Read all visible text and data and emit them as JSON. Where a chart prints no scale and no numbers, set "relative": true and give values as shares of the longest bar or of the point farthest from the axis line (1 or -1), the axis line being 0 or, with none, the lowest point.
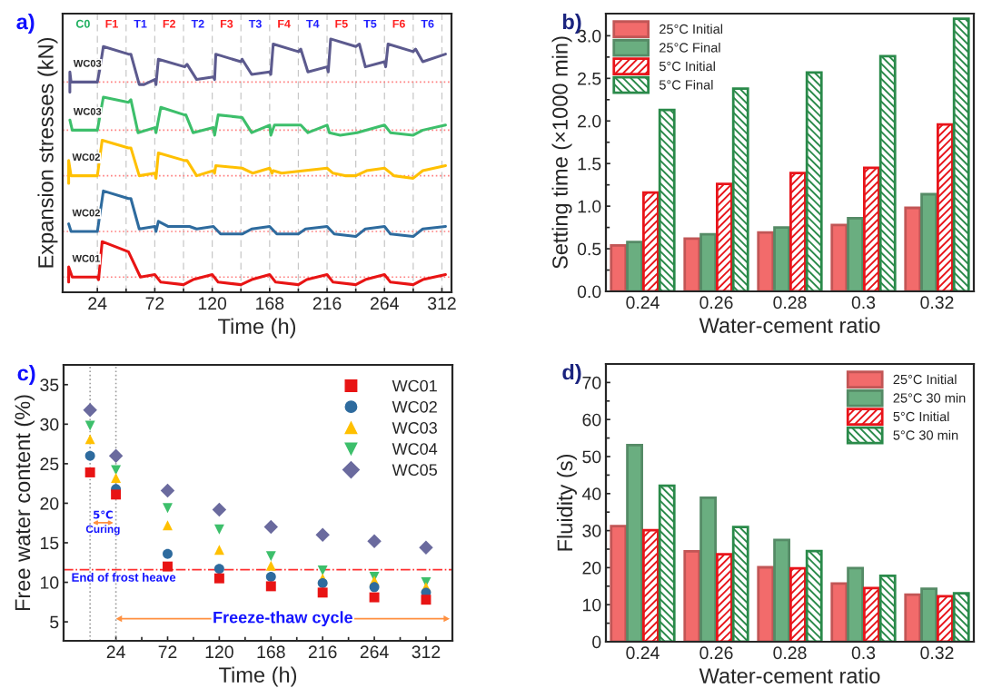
{
  "chart_data": [
    {
      "type": "line",
      "title": "a)",
      "xlabel": "Time (h)",
      "ylabel": "Expansion stresses (kN)",
      "relative": true,
      "xlim": [
        -5,
        320
      ],
      "xticks": [
        24,
        {
          "value": 48,
          "label": null
        },
        72,
        {
          "value": 96,
          "label": null
        },
        120,
        {
          "value": 144,
          "label": null
        },
        168,
        {
          "value": 192,
          "label": null
        },
        216,
        {
          "value": 240,
          "label": null
        },
        264,
        {
          "value": 288,
          "label": null
        },
        312
      ],
      "grid": "x",
      "tick_labels": "x",
      "line_style": "solid",
      "marker": "none",
      "series": [
        {
          "name": "WC03",
          "color": "#5c5a8e",
          "x": [
            1,
            1,
            2,
            24,
            26,
            29,
            50,
            52,
            59,
            63,
            72,
            73,
            75,
            97,
            99,
            107,
            121,
            122,
            123,
            144,
            145,
            153,
            168,
            169,
            171,
            192,
            194,
            200,
            216,
            217,
            219,
            240,
            243,
            248,
            264,
            265,
            267,
            288,
            290,
            296,
            315
          ],
          "values": [
            0.79,
            0.87,
            0.83,
            0.83,
            0.88,
            0.97,
            0.94,
            0.94,
            0.82,
            0.82,
            0.84,
            0.82,
            0.92,
            0.89,
            0.9,
            0.84,
            0.85,
            0.84,
            0.94,
            0.91,
            0.92,
            0.86,
            0.87,
            0.86,
            0.98,
            0.95,
            0.96,
            0.87,
            0.89,
            0.87,
            1.0,
            0.97,
            0.98,
            0.89,
            0.91,
            0.89,
            0.98,
            0.95,
            0.96,
            0.91,
            0.94
          ]
        },
        {
          "name": "WC03",
          "color": "#3dbf6b",
          "x": [
            1,
            3,
            24,
            29,
            50,
            52,
            58,
            72,
            73,
            77,
            97,
            98,
            104,
            121,
            122,
            125,
            145,
            153,
            168,
            169,
            172,
            192,
            194,
            200,
            216,
            218,
            227,
            241,
            264,
            269,
            288,
            296,
            315
          ],
          "values": [
            0.68,
            0.64,
            0.64,
            0.77,
            0.75,
            0.76,
            0.63,
            0.65,
            0.63,
            0.73,
            0.7,
            0.7,
            0.63,
            0.65,
            0.62,
            0.7,
            0.69,
            0.63,
            0.66,
            0.62,
            0.66,
            0.66,
            0.66,
            0.63,
            0.66,
            0.63,
            0.62,
            0.63,
            0.66,
            0.63,
            0.62,
            0.64,
            0.66
          ]
        },
        {
          "name": "WC02",
          "color": "#ffc000",
          "x": [
            0,
            0,
            2,
            24,
            28,
            50,
            52,
            59,
            72,
            73,
            75,
            97,
            99,
            107,
            121,
            122,
            123,
            145,
            154,
            168,
            170,
            171,
            178,
            216,
            221,
            231,
            240,
            249,
            264,
            272,
            288,
            296,
            315
          ],
          "values": [
            0.43,
            0.52,
            0.46,
            0.46,
            0.6,
            0.57,
            0.57,
            0.46,
            0.47,
            0.45,
            0.55,
            0.52,
            0.52,
            0.46,
            0.48,
            0.47,
            0.5,
            0.49,
            0.47,
            0.49,
            0.47,
            0.48,
            0.47,
            0.49,
            0.47,
            0.46,
            0.46,
            0.48,
            0.49,
            0.46,
            0.45,
            0.48,
            0.5
          ]
        },
        {
          "name": "WC02",
          "color": "#2e6b9e",
          "x": [
            0,
            2,
            24,
            29,
            50,
            52,
            59,
            72,
            73,
            75,
            83,
            97,
            101,
            107,
            121,
            127,
            145,
            153,
            168,
            174,
            192,
            198,
            216,
            222,
            240,
            248,
            264,
            269,
            288,
            296,
            315
          ],
          "values": [
            0.27,
            0.24,
            0.24,
            0.4,
            0.37,
            0.37,
            0.25,
            0.26,
            0.24,
            0.28,
            0.26,
            0.26,
            0.26,
            0.25,
            0.26,
            0.23,
            0.23,
            0.25,
            0.26,
            0.23,
            0.23,
            0.25,
            0.26,
            0.23,
            0.22,
            0.25,
            0.26,
            0.23,
            0.22,
            0.25,
            0.26
          ]
        },
        {
          "name": "WC01",
          "color": "#e81414",
          "x": [
            0,
            0,
            3,
            24,
            25,
            28,
            50,
            60,
            72,
            77,
            96,
            104,
            120,
            125,
            144,
            153,
            168,
            173,
            192,
            199,
            216,
            221,
            240,
            248,
            264,
            269,
            288,
            296,
            315
          ],
          "values": [
            0.04,
            0.1,
            0.06,
            0.06,
            0.05,
            0.2,
            0.16,
            0.06,
            0.07,
            0.04,
            0.03,
            0.05,
            0.07,
            0.04,
            0.03,
            0.05,
            0.07,
            0.04,
            0.03,
            0.05,
            0.07,
            0.04,
            0.03,
            0.05,
            0.07,
            0.04,
            0.03,
            0.05,
            0.07
          ]
        }
      ],
      "ref_lines": [
        {
          "axis": "y",
          "value": 0.83,
          "color": "#ff8080",
          "line_style": "dotted"
        },
        {
          "axis": "y",
          "value": 0.64,
          "color": "#ff8080",
          "line_style": "dotted"
        },
        {
          "axis": "y",
          "value": 0.46,
          "color": "#ff8080",
          "line_style": "dotted"
        },
        {
          "axis": "y",
          "value": 0.24,
          "color": "#ff8080",
          "line_style": "dotted"
        },
        {
          "axis": "y",
          "value": 0.06,
          "color": "#ff8080",
          "line_style": "dotted"
        }
      ],
      "annotations": [
        "C0",
        "F1",
        "T1",
        "F2",
        "T2",
        "F3",
        "T3",
        "F4",
        "T4",
        "F5",
        "T5",
        "F6",
        "T6"
      ]
    },
    {
      "type": "bar",
      "title": "b)",
      "xlabel": "Water-cement ratio",
      "ylabel": "Setting time (×1000 min)",
      "categories": [
        "0.24",
        "0.26",
        "0.28",
        "0.3",
        "0.32"
      ],
      "ylim": [
        0,
        3.26
      ],
      "yticks": [
        {
          "value": 0,
          "label": "0.0"
        },
        {
          "value": 0.25,
          "label": null
        },
        0.5,
        {
          "value": 0.75,
          "label": null
        },
        {
          "value": 1,
          "label": "1.0"
        },
        {
          "value": 1.25,
          "label": null
        },
        1.5,
        {
          "value": 1.75,
          "label": null
        },
        {
          "value": 2,
          "label": "2.0"
        },
        {
          "value": 2.25,
          "label": null
        },
        2.5,
        {
          "value": 2.75,
          "label": null
        },
        {
          "value": 3,
          "label": "3.0"
        }
      ],
      "legend": "top left",
      "series": [
        {
          "name": "25°C Initial",
          "color": "#f26b6b",
          "values": [
            0.54,
            0.62,
            0.69,
            0.78,
            0.98
          ]
        },
        {
          "name": "25°C Final",
          "color": "#6aae80",
          "values": [
            0.58,
            0.67,
            0.75,
            0.86,
            1.14
          ]
        },
        {
          "name": "5°C Initial",
          "color": "#e8141a",
          "values": [
            1.16,
            1.26,
            1.39,
            1.45,
            1.96
          ]
        },
        {
          "name": "5°C Final",
          "color": "#2a8a4a",
          "values": [
            2.13,
            2.38,
            2.57,
            2.76,
            3.2
          ]
        }
      ]
    },
    {
      "type": "scatter",
      "title": "c)",
      "xlabel": "Time (h)",
      "ylabel": "Free water content (%)",
      "x": [
        0,
        24,
        72,
        120,
        168,
        216,
        264,
        312
      ],
      "xlim": [
        -24.6,
        336.5
      ],
      "ylim": [
        2.6,
        37.5
      ],
      "xticks": [
        24,
        {
          "value": 48,
          "label": null
        },
        72,
        {
          "value": 96,
          "label": null
        },
        120,
        {
          "value": 144,
          "label": null
        },
        168,
        {
          "value": 192,
          "label": null
        },
        216,
        {
          "value": 240,
          "label": null
        },
        264,
        {
          "value": 288,
          "label": null
        },
        312
      ],
      "yticks": [
        5,
        10,
        15,
        20,
        25,
        30,
        35
      ],
      "legend": "top right",
      "series": [
        {
          "name": "WC01",
          "color": "#e81414",
          "marker": "square",
          "values": [
            23.9,
            21.1,
            12.0,
            10.5,
            9.5,
            8.7,
            8.1,
            7.8
          ]
        },
        {
          "name": "WC02",
          "color": "#2e6b9e",
          "marker": "circle",
          "values": [
            26.0,
            21.8,
            13.6,
            11.7,
            10.7,
            9.9,
            9.4,
            8.7
          ]
        },
        {
          "name": "WC03",
          "color": "#ffc000",
          "marker": "triangle",
          "values": [
            28.1,
            23.2,
            17.2,
            14.1,
            12.1,
            10.5,
            10.2,
            9.4
          ]
        },
        {
          "name": "WC04",
          "color": "#3dbf6b",
          "marker": "triangle_down",
          "values": [
            29.8,
            24.2,
            19.4,
            16.7,
            13.3,
            11.5,
            10.7,
            10.0
          ]
        },
        {
          "name": "WC05",
          "color": "#6a6a9e",
          "marker": "diamond",
          "values": [
            31.8,
            26.0,
            21.6,
            19.2,
            17.0,
            16.0,
            15.2,
            14.4
          ]
        }
      ],
      "ref_lines": [
        {
          "axis": "x",
          "value": 0,
          "color": "#a0a0a0",
          "line_style": "dotted"
        },
        {
          "axis": "x",
          "value": 24,
          "color": "#a0a0a0",
          "line_style": "dotted"
        },
        {
          "axis": "y",
          "value": 11.6,
          "label": "End of frost heave",
          "color": "#ff3030",
          "line_style": "dashdot"
        }
      ],
      "annotations": [
        "5℃",
        "Curing",
        "Freeze-thaw cycle"
      ]
    },
    {
      "type": "bar",
      "title": "d)",
      "xlabel": "Water-cement ratio",
      "ylabel": "Fluidity (s)",
      "categories": [
        "0.24",
        "0.26",
        "0.28",
        "0.3",
        "0.32"
      ],
      "ylim": [
        0,
        75
      ],
      "yticks": [
        0,
        {
          "value": 5,
          "label": null
        },
        10,
        {
          "value": 15,
          "label": null
        },
        20,
        {
          "value": 25,
          "label": null
        },
        30,
        {
          "value": 35,
          "label": null
        },
        40,
        {
          "value": 45,
          "label": null
        },
        50,
        {
          "value": 55,
          "label": null
        },
        60,
        {
          "value": 65,
          "label": null
        },
        70
      ],
      "legend": "top right",
      "series": [
        {
          "name": "25°C Initial",
          "color": "#f26b6b",
          "values": [
            31.2,
            24.4,
            20.1,
            15.7,
            12.7
          ]
        },
        {
          "name": "25°C 30 min",
          "color": "#6aae80",
          "values": [
            53.1,
            38.9,
            27.5,
            19.9,
            14.3
          ]
        },
        {
          "name": "5°C Initial",
          "color": "#e8141a",
          "values": [
            30.1,
            23.6,
            19.8,
            14.5,
            12.3
          ]
        },
        {
          "name": "5°C 30 min",
          "color": "#2a8a4a",
          "values": [
            42.1,
            31.0,
            24.5,
            17.8,
            13.1
          ]
        }
      ]
    }
  ]
}
